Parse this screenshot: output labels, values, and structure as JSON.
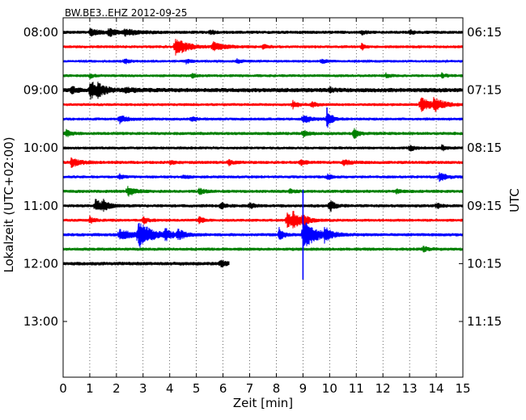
{
  "chart_data": {
    "type": "line",
    "title": "BW.BE3..EHZ 2012-09-25",
    "xlabel": "Zeit  [min]",
    "ylabel_left": "Lokalzeit (UTC+02:00)",
    "ylabel_right": "UTC",
    "xlim": [
      0,
      15
    ],
    "x_ticks": [
      "0",
      "1",
      "2",
      "3",
      "4",
      "5",
      "6",
      "7",
      "8",
      "9",
      "10",
      "11",
      "12",
      "13",
      "14",
      "15"
    ],
    "left_ticks": [
      {
        "label": "08:00",
        "row": 0
      },
      {
        "label": "09:00",
        "row": 4
      },
      {
        "label": "10:00",
        "row": 8
      },
      {
        "label": "11:00",
        "row": 12
      },
      {
        "label": "12:00",
        "row": 16
      },
      {
        "label": "13:00",
        "row": 20
      }
    ],
    "right_ticks": [
      {
        "label": "06:15",
        "row": 0
      },
      {
        "label": "07:15",
        "row": 4
      },
      {
        "label": "08:15",
        "row": 8
      },
      {
        "label": "09:15",
        "row": 12
      },
      {
        "label": "10:15",
        "row": 16
      },
      {
        "label": "11:15",
        "row": 20
      }
    ],
    "row_count": 24,
    "grid": "vertical dotted at each minute",
    "colors": [
      "#000000",
      "#ff0000",
      "#0000ff",
      "#008000"
    ],
    "traces": [
      {
        "start": "08:00",
        "end_min": 15,
        "noise": 0.22,
        "events": [
          {
            "t": 1.0,
            "amp": 0.5,
            "w": 0.1
          },
          {
            "t": 1.7,
            "amp": 0.5,
            "w": 0.1
          },
          {
            "t": 2.3,
            "amp": 0.4,
            "w": 0.15
          },
          {
            "t": 5.5,
            "amp": 0.4,
            "w": 0.05
          },
          {
            "t": 11.2,
            "amp": 0.3,
            "w": 0.05
          },
          {
            "t": 13.0,
            "amp": 0.3,
            "w": 0.05
          }
        ]
      },
      {
        "start": "08:15",
        "end_min": 15,
        "noise": 0.2,
        "events": [
          {
            "t": 4.2,
            "amp": 1.4,
            "w": 0.12
          },
          {
            "t": 5.6,
            "amp": 0.6,
            "w": 0.12
          },
          {
            "t": 7.5,
            "amp": 0.3,
            "w": 0.05
          },
          {
            "t": 11.2,
            "amp": 0.5,
            "w": 0.03
          }
        ]
      },
      {
        "start": "08:30",
        "end_min": 15,
        "noise": 0.18,
        "events": [
          {
            "t": 2.3,
            "amp": 0.4,
            "w": 0.05
          },
          {
            "t": 4.6,
            "amp": 0.3,
            "w": 0.05
          },
          {
            "t": 6.5,
            "amp": 0.3,
            "w": 0.05
          },
          {
            "t": 9.7,
            "amp": 0.3,
            "w": 0.05
          }
        ]
      },
      {
        "start": "08:45",
        "end_min": 15,
        "noise": 0.2,
        "events": [
          {
            "t": 1.0,
            "amp": 0.3,
            "w": 0.05
          },
          {
            "t": 4.8,
            "amp": 0.3,
            "w": 0.05
          },
          {
            "t": 12.1,
            "amp": 0.3,
            "w": 0.05
          },
          {
            "t": 14.2,
            "amp": 0.3,
            "w": 0.05
          }
        ]
      },
      {
        "start": "09:00",
        "end_min": 15,
        "noise": 0.3,
        "events": [
          {
            "t": 0.3,
            "amp": 0.5,
            "w": 0.05
          },
          {
            "t": 1.0,
            "amp": 1.3,
            "w": 0.1
          },
          {
            "t": 1.3,
            "amp": 0.5,
            "w": 0.08
          },
          {
            "t": 2.3,
            "amp": 0.3,
            "w": 0.1
          },
          {
            "t": 10.0,
            "amp": 0.3,
            "w": 0.05
          }
        ]
      },
      {
        "start": "09:15",
        "end_min": 15,
        "noise": 0.2,
        "events": [
          {
            "t": 8.6,
            "amp": 0.6,
            "w": 0.05
          },
          {
            "t": 9.3,
            "amp": 0.5,
            "w": 0.05
          },
          {
            "t": 13.4,
            "amp": 0.9,
            "w": 0.15
          },
          {
            "t": 13.9,
            "amp": 0.7,
            "w": 0.1
          }
        ]
      },
      {
        "start": "09:30",
        "end_min": 15,
        "noise": 0.2,
        "events": [
          {
            "t": 2.1,
            "amp": 0.6,
            "w": 0.08
          },
          {
            "t": 4.8,
            "amp": 0.4,
            "w": 0.05
          },
          {
            "t": 9.0,
            "amp": 0.6,
            "w": 0.1
          },
          {
            "t": 9.9,
            "amp": 1.4,
            "w": 0.05
          }
        ]
      },
      {
        "start": "09:45",
        "end_min": 15,
        "noise": 0.22,
        "events": [
          {
            "t": 0.1,
            "amp": 0.5,
            "w": 0.05
          },
          {
            "t": 9.0,
            "amp": 0.5,
            "w": 0.05
          },
          {
            "t": 10.9,
            "amp": 0.7,
            "w": 0.05
          }
        ]
      },
      {
        "start": "10:00",
        "end_min": 15,
        "noise": 0.2,
        "events": [
          {
            "t": 13.0,
            "amp": 0.5,
            "w": 0.05
          },
          {
            "t": 14.2,
            "amp": 0.4,
            "w": 0.05
          }
        ]
      },
      {
        "start": "10:15",
        "end_min": 15,
        "noise": 0.22,
        "events": [
          {
            "t": 0.3,
            "amp": 0.6,
            "w": 0.1
          },
          {
            "t": 4.0,
            "amp": 0.3,
            "w": 0.05
          },
          {
            "t": 6.2,
            "amp": 0.4,
            "w": 0.05
          },
          {
            "t": 8.9,
            "amp": 0.4,
            "w": 0.05
          },
          {
            "t": 10.5,
            "amp": 0.4,
            "w": 0.08
          }
        ]
      },
      {
        "start": "10:30",
        "end_min": 15,
        "noise": 0.2,
        "events": [
          {
            "t": 2.1,
            "amp": 0.4,
            "w": 0.05
          },
          {
            "t": 4.5,
            "amp": 0.3,
            "w": 0.05
          },
          {
            "t": 9.9,
            "amp": 0.4,
            "w": 0.05
          },
          {
            "t": 14.1,
            "amp": 0.6,
            "w": 0.08
          }
        ]
      },
      {
        "start": "10:45",
        "end_min": 15,
        "noise": 0.22,
        "events": [
          {
            "t": 2.4,
            "amp": 0.7,
            "w": 0.08
          },
          {
            "t": 5.1,
            "amp": 0.5,
            "w": 0.05
          },
          {
            "t": 8.5,
            "amp": 0.3,
            "w": 0.05
          },
          {
            "t": 12.5,
            "amp": 0.3,
            "w": 0.05
          }
        ]
      },
      {
        "start": "11:00",
        "end_min": 15,
        "noise": 0.22,
        "events": [
          {
            "t": 1.2,
            "amp": 0.8,
            "w": 0.1
          },
          {
            "t": 1.5,
            "amp": 0.6,
            "w": 0.05
          },
          {
            "t": 5.9,
            "amp": 0.5,
            "w": 0.05
          },
          {
            "t": 7.0,
            "amp": 0.4,
            "w": 0.05
          },
          {
            "t": 10.0,
            "amp": 0.9,
            "w": 0.05
          },
          {
            "t": 14.0,
            "amp": 0.4,
            "w": 0.05
          }
        ]
      },
      {
        "start": "11:15",
        "end_min": 15,
        "noise": 0.2,
        "events": [
          {
            "t": 1.0,
            "amp": 0.5,
            "w": 0.05
          },
          {
            "t": 3.0,
            "amp": 0.5,
            "w": 0.05
          },
          {
            "t": 5.1,
            "amp": 0.5,
            "w": 0.05
          },
          {
            "t": 8.4,
            "amp": 1.0,
            "w": 0.1
          },
          {
            "t": 8.6,
            "amp": 0.8,
            "w": 0.1
          },
          {
            "t": 9.0,
            "amp": 0.6,
            "w": 0.05
          }
        ]
      },
      {
        "start": "11:30",
        "end_min": 15,
        "noise": 0.22,
        "events": [
          {
            "t": 2.1,
            "amp": 0.7,
            "w": 0.15
          },
          {
            "t": 2.8,
            "amp": 1.8,
            "w": 0.15
          },
          {
            "t": 3.8,
            "amp": 0.8,
            "w": 0.08
          },
          {
            "t": 4.3,
            "amp": 0.6,
            "w": 0.08
          },
          {
            "t": 8.1,
            "amp": 0.9,
            "w": 0.05
          },
          {
            "t": 9.0,
            "amp": 2.1,
            "w": 0.14
          },
          {
            "t": 9.8,
            "amp": 0.8,
            "w": 0.08
          }
        ]
      },
      {
        "start": "11:45",
        "end_min": 15,
        "noise": 0.22,
        "events": [
          {
            "t": 13.5,
            "amp": 0.4,
            "w": 0.05
          }
        ]
      },
      {
        "start": "12:00",
        "end_min": 6.25,
        "noise": 0.25,
        "events": [
          {
            "t": 5.9,
            "amp": 0.6,
            "w": 0.05
          }
        ]
      }
    ],
    "spikes": [
      {
        "row": 14,
        "t": 9.0,
        "up": 3.1,
        "down": 3.1
      },
      {
        "row": 6,
        "t": 9.9,
        "up": 0.8,
        "down": 0.5
      }
    ]
  }
}
